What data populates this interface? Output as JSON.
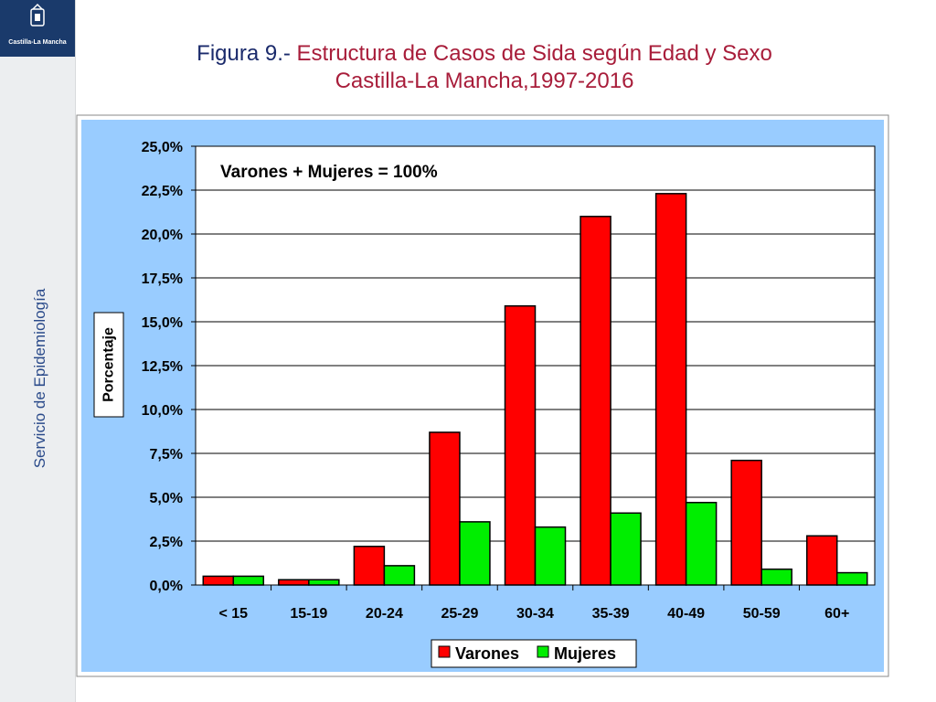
{
  "sidebar": {
    "logo_text": "Castilla-La Mancha",
    "vertical_label": "Servicio de Epidemiología"
  },
  "header": {
    "title_prefix": "Figura 9.- ",
    "title_rest": "Estructura  de Casos de Sida según Edad y Sexo",
    "subtitle": "Castilla-La Mancha,1997-2016"
  },
  "colors": {
    "varones": "#ff0000",
    "mujeres": "#00ee00",
    "chart_area": "#99ccff",
    "plot_area": "#ffffff",
    "title_red": "#a81d3a",
    "title_blue": "#1a2a6b",
    "logo_bg": "#1a3a6b"
  },
  "chart_data": {
    "type": "bar",
    "annotation": "Varones + Mujeres = 100%",
    "ylabel": "Porcentaje",
    "xlabel": "",
    "ylim": [
      0,
      25
    ],
    "ytick_labels": [
      "0,0%",
      "2,5%",
      "5,0%",
      "7,5%",
      "10,0%",
      "12,5%",
      "15,0%",
      "17,5%",
      "20,0%",
      "22,5%",
      "25,0%"
    ],
    "categories": [
      "< 15",
      "15-19",
      "20-24",
      "25-29",
      "30-34",
      "35-39",
      "40-49",
      "50-59",
      "60+"
    ],
    "series": [
      {
        "name": "Varones",
        "color": "#ff0000",
        "values": [
          0.5,
          0.3,
          2.2,
          8.7,
          15.9,
          21.0,
          22.3,
          7.1,
          2.8
        ]
      },
      {
        "name": "Mujeres",
        "color": "#00ee00",
        "values": [
          0.5,
          0.3,
          1.1,
          3.6,
          3.3,
          4.1,
          4.7,
          0.9,
          0.7
        ]
      }
    ],
    "grid": true,
    "legend_position": "bottom-right"
  }
}
